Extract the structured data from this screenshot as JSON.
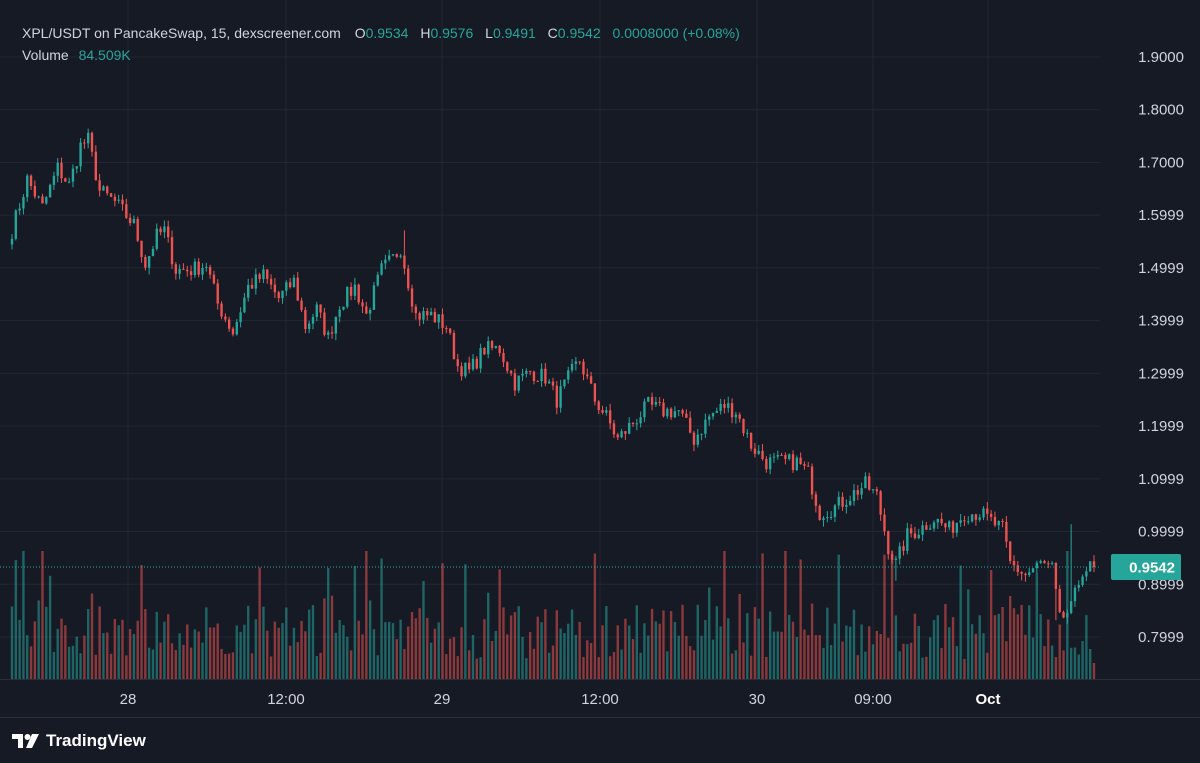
{
  "header": {
    "symbol": "XPL/USDT on PancakeSwap, 15, dexscreener.com",
    "open_label": "O",
    "open": "0.9534",
    "high_label": "H",
    "high": "0.9576",
    "low_label": "L",
    "low": "0.9491",
    "close_label": "C",
    "close": "0.9542",
    "change": "0.0008000 (+0.08%)",
    "volume_label": "Volume",
    "volume": "84.509K"
  },
  "brand": {
    "name": "TradingView"
  },
  "colors": {
    "background": "#161a25",
    "grid": "#232735",
    "text": "#d1d4dc",
    "up": "#26a69a",
    "down": "#ef5350"
  },
  "chart_data": {
    "type": "candlestick",
    "title": "XPL/USDT on PancakeSwap, 15, dexscreener.com",
    "y_ticks": [
      "1.9000",
      "1.8000",
      "1.7000",
      "1.5999",
      "1.4999",
      "1.3999",
      "1.2999",
      "1.1999",
      "1.0999",
      "0.9999",
      "0.8999",
      "0.7999"
    ],
    "x_ticks": [
      {
        "label": "28",
        "bold": false
      },
      {
        "label": "12:00",
        "bold": false
      },
      {
        "label": "29",
        "bold": false
      },
      {
        "label": "12:00",
        "bold": false
      },
      {
        "label": "30",
        "bold": false
      },
      {
        "label": "09:00",
        "bold": false
      },
      {
        "label": "Oct",
        "bold": true
      }
    ],
    "ylim": [
      0.756,
      1.94
    ],
    "last_price": "0.9542",
    "grid": true,
    "anchors": [
      {
        "t": 0,
        "p": 1.55
      },
      {
        "t": 4,
        "p": 1.64
      },
      {
        "t": 8,
        "p": 1.59
      },
      {
        "t": 12,
        "p": 1.66
      },
      {
        "t": 15,
        "p": 1.63
      },
      {
        "t": 18,
        "p": 1.7
      },
      {
        "t": 20,
        "p": 1.71
      },
      {
        "t": 23,
        "p": 1.62
      },
      {
        "t": 27,
        "p": 1.6
      },
      {
        "t": 32,
        "p": 1.56
      },
      {
        "t": 35,
        "p": 1.49
      },
      {
        "t": 38,
        "p": 1.54
      },
      {
        "t": 40,
        "p": 1.55
      },
      {
        "t": 43,
        "p": 1.48
      },
      {
        "t": 47,
        "p": 1.48
      },
      {
        "t": 51,
        "p": 1.49
      },
      {
        "t": 54,
        "p": 1.42
      },
      {
        "t": 58,
        "p": 1.37
      },
      {
        "t": 62,
        "p": 1.45
      },
      {
        "t": 66,
        "p": 1.47
      },
      {
        "t": 70,
        "p": 1.43
      },
      {
        "t": 74,
        "p": 1.46
      },
      {
        "t": 77,
        "p": 1.38
      },
      {
        "t": 80,
        "p": 1.41
      },
      {
        "t": 83,
        "p": 1.36
      },
      {
        "t": 86,
        "p": 1.42
      },
      {
        "t": 90,
        "p": 1.45
      },
      {
        "t": 93,
        "p": 1.4
      },
      {
        "t": 97,
        "p": 1.48
      },
      {
        "t": 100,
        "p": 1.5
      },
      {
        "t": 102,
        "p": 1.52
      },
      {
        "t": 106,
        "p": 1.4
      },
      {
        "t": 110,
        "p": 1.4
      },
      {
        "t": 114,
        "p": 1.38
      },
      {
        "t": 117,
        "p": 1.31
      },
      {
        "t": 120,
        "p": 1.3
      },
      {
        "t": 124,
        "p": 1.34
      },
      {
        "t": 128,
        "p": 1.34
      },
      {
        "t": 132,
        "p": 1.28
      },
      {
        "t": 136,
        "p": 1.3
      },
      {
        "t": 140,
        "p": 1.29
      },
      {
        "t": 143,
        "p": 1.25
      },
      {
        "t": 147,
        "p": 1.3
      },
      {
        "t": 149,
        "p": 1.32
      },
      {
        "t": 153,
        "p": 1.25
      },
      {
        "t": 156,
        "p": 1.22
      },
      {
        "t": 159,
        "p": 1.18
      },
      {
        "t": 163,
        "p": 1.21
      },
      {
        "t": 167,
        "p": 1.24
      },
      {
        "t": 171,
        "p": 1.23
      },
      {
        "t": 175,
        "p": 1.23
      },
      {
        "t": 179,
        "p": 1.18
      },
      {
        "t": 183,
        "p": 1.22
      },
      {
        "t": 187,
        "p": 1.24
      },
      {
        "t": 190,
        "p": 1.23
      },
      {
        "t": 194,
        "p": 1.17
      },
      {
        "t": 198,
        "p": 1.14
      },
      {
        "t": 202,
        "p": 1.14
      },
      {
        "t": 206,
        "p": 1.14
      },
      {
        "t": 209,
        "p": 1.12
      },
      {
        "t": 212,
        "p": 1.05
      },
      {
        "t": 216,
        "p": 1.06
      },
      {
        "t": 220,
        "p": 1.08
      },
      {
        "t": 224,
        "p": 1.1
      },
      {
        "t": 227,
        "p": 1.08
      },
      {
        "t": 230,
        "p": 0.99
      },
      {
        "t": 232,
        "p": 0.96
      },
      {
        "t": 235,
        "p": 1.01
      },
      {
        "t": 238,
        "p": 1.02
      },
      {
        "t": 242,
        "p": 1.04
      },
      {
        "t": 246,
        "p": 1.02
      },
      {
        "t": 250,
        "p": 1.05
      },
      {
        "t": 254,
        "p": 1.05
      },
      {
        "t": 258,
        "p": 1.03
      },
      {
        "t": 260,
        "p": 1.02
      },
      {
        "t": 262,
        "p": 0.96
      },
      {
        "t": 266,
        "p": 0.94
      },
      {
        "t": 270,
        "p": 0.96
      },
      {
        "t": 273,
        "p": 0.95
      },
      {
        "t": 275,
        "p": 0.86
      },
      {
        "t": 278,
        "p": 0.88
      },
      {
        "t": 281,
        "p": 0.95
      },
      {
        "t": 284,
        "p": 0.9542
      }
    ]
  }
}
